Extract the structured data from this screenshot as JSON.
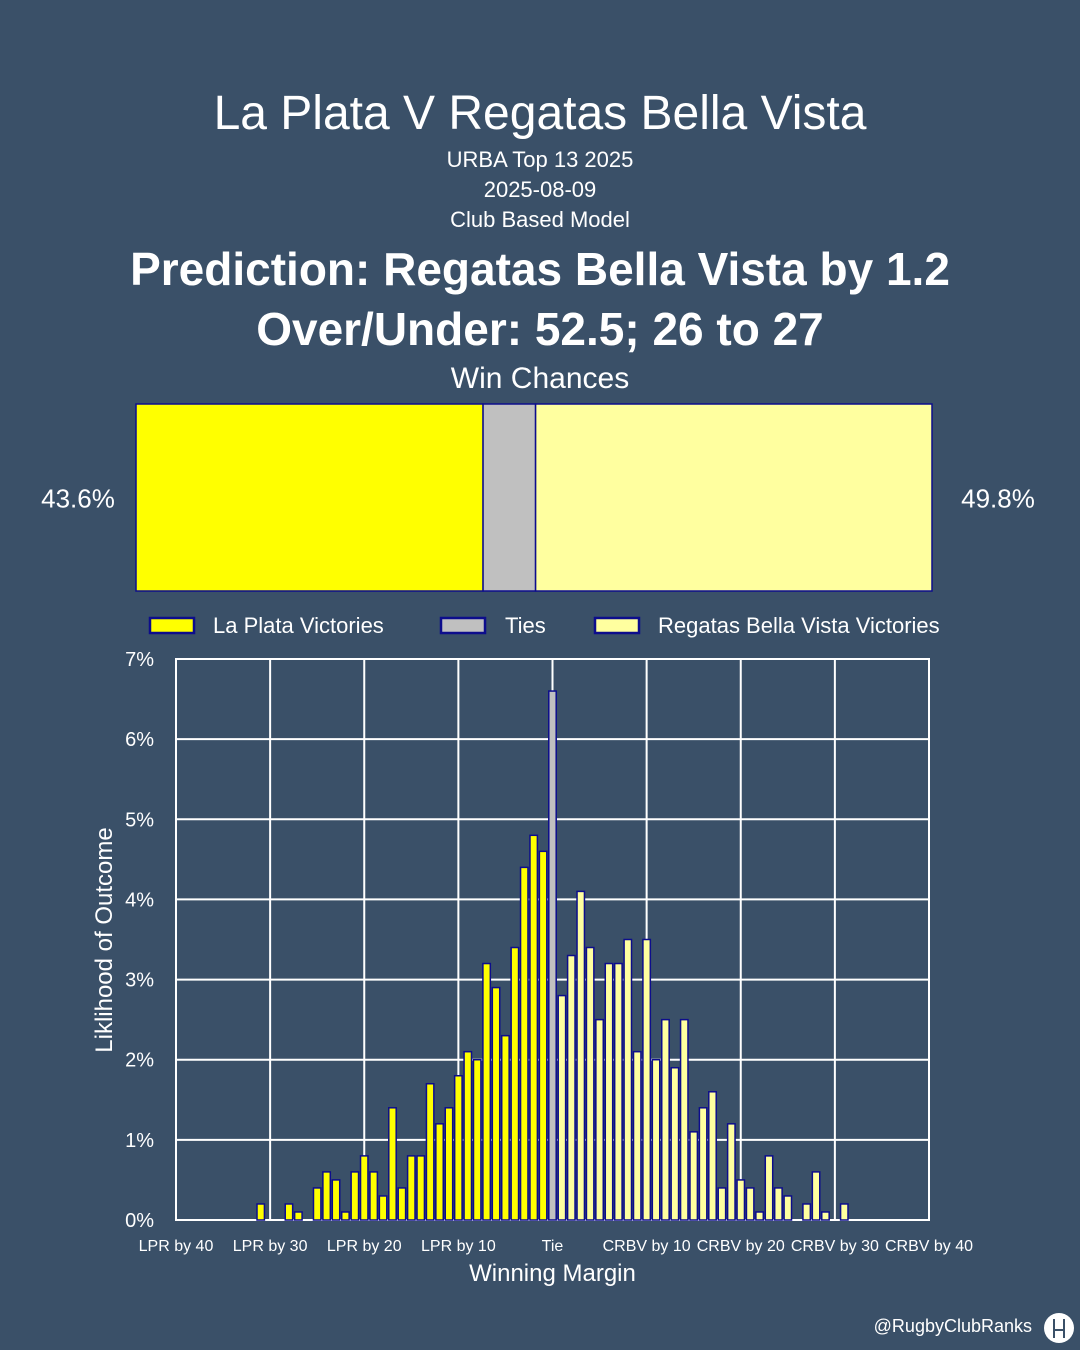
{
  "header": {
    "title": "La Plata V Regatas Bella Vista",
    "competition": "URBA Top 13 2025",
    "date": "2025-08-09",
    "model": "Club Based Model",
    "prediction": "Prediction: Regatas Bella Vista by 1.2",
    "over_under": "Over/Under: 52.5; 26 to 27"
  },
  "footer": {
    "handle": "@RugbyClubRanks",
    "logo_icon": "rugby-posts-logo-icon"
  },
  "colors": {
    "background": "#3a5068",
    "home": "#ffff00",
    "tie": "#c0c0c0",
    "away": "#ffff9f",
    "border": "#0d0d8c"
  },
  "chart_data": [
    {
      "type": "bar",
      "orientation": "horizontal-stacked",
      "title": "Win Chances",
      "segments": [
        {
          "name": "La Plata Victories",
          "value": 43.6,
          "label": "43.6%"
        },
        {
          "name": "Ties",
          "value": 6.6
        },
        {
          "name": "Regatas Bella Vista Victories",
          "value": 49.8,
          "label": "49.8%"
        }
      ],
      "legend": [
        "La Plata Victories",
        "Ties",
        "Regatas Bella Vista Victories"
      ],
      "legend_position": "bottom"
    },
    {
      "type": "bar",
      "xlabel": "Winning Margin",
      "ylabel": "Liklihood of Outcome",
      "xlim": [
        -40,
        40
      ],
      "ylim": [
        0,
        7
      ],
      "yticks": [
        "0%",
        "1%",
        "2%",
        "3%",
        "4%",
        "5%",
        "6%",
        "7%"
      ],
      "xticks": [
        {
          "x": -40,
          "label": "LPR by 40"
        },
        {
          "x": -30,
          "label": "LPR by 30"
        },
        {
          "x": -20,
          "label": "LPR by 20"
        },
        {
          "x": -10,
          "label": "LPR by 10"
        },
        {
          "x": 0,
          "label": "Tie"
        },
        {
          "x": 10,
          "label": "CRBV by 10"
        },
        {
          "x": 20,
          "label": "CRBV by 20"
        },
        {
          "x": 30,
          "label": "CRBV by 30"
        },
        {
          "x": 40,
          "label": "CRBV by 40"
        }
      ],
      "grid": true,
      "series": [
        {
          "name": "La Plata Victories",
          "x": [
            -31,
            -30,
            -29,
            -28,
            -27,
            -26,
            -25,
            -24,
            -23,
            -22,
            -21,
            -20,
            -19,
            -18,
            -17,
            -16,
            -15,
            -14,
            -13,
            -12,
            -11,
            -10,
            -9,
            -8,
            -7,
            -6,
            -5,
            -4,
            -3,
            -2,
            -1
          ],
          "values": [
            0.2,
            0,
            0,
            0.2,
            0.1,
            0,
            0.4,
            0.6,
            0.5,
            0.1,
            0.6,
            0.8,
            0.6,
            0.3,
            1.4,
            0.4,
            0.8,
            0.8,
            1.7,
            1.2,
            1.4,
            1.8,
            2.1,
            2.0,
            3.2,
            2.9,
            2.3,
            3.4,
            4.4,
            4.8,
            4.6
          ]
        },
        {
          "name": "Ties",
          "x": [
            0
          ],
          "values": [
            6.6
          ]
        },
        {
          "name": "Regatas Bella Vista Victories",
          "x": [
            1,
            2,
            3,
            4,
            5,
            6,
            7,
            8,
            9,
            10,
            11,
            12,
            13,
            14,
            15,
            16,
            17,
            18,
            19,
            20,
            21,
            22,
            23,
            24,
            25,
            26,
            27,
            28,
            29,
            30,
            31
          ],
          "values": [
            2.8,
            3.3,
            4.1,
            3.4,
            2.5,
            3.2,
            3.2,
            3.5,
            2.1,
            3.5,
            2.0,
            2.5,
            1.9,
            2.5,
            1.1,
            1.4,
            1.6,
            0.4,
            1.2,
            0.5,
            0.4,
            0.1,
            0.8,
            0.4,
            0.3,
            0,
            0.2,
            0.6,
            0.1,
            0,
            0.2
          ]
        }
      ]
    }
  ]
}
